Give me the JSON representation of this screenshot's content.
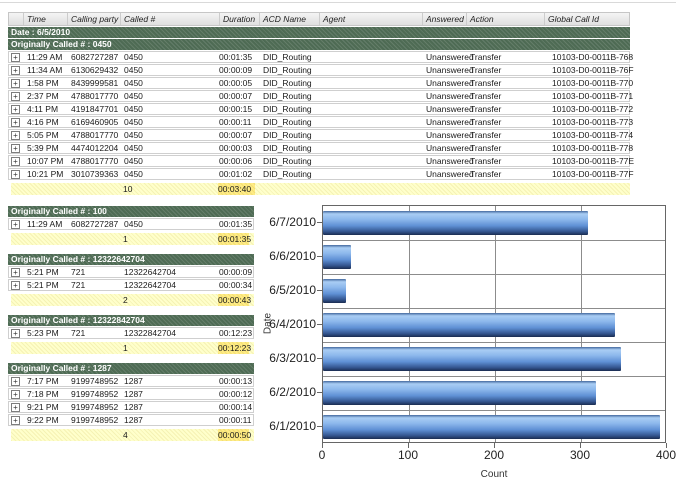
{
  "icons": {
    "expand": "+"
  },
  "colors": {
    "group_header_green": "#4e6b54",
    "summary_yellow": "#ffffcb",
    "summary_duration_yellow": "#ffec85",
    "bar_blue": "#5e8fd4"
  },
  "table": {
    "columns": [
      "",
      "Time",
      "Calling party #",
      "Called #",
      "Duration",
      "ACD Name",
      "Agent",
      "Answered",
      "Action",
      "Global Call Id"
    ],
    "date_group_label": "Date : 6/5/2010",
    "main_group": {
      "label": "Originally Called # : 0450",
      "rows": [
        {
          "time": "11:29 AM",
          "calling_party": "6082727287",
          "called": "0450",
          "duration": "00:01:35",
          "acd_name": "DID_Routing",
          "agent": "",
          "answered": "Unanswered",
          "action": "Transfer",
          "global_call_id": "10103-D0-0011B-768"
        },
        {
          "time": "11:34 AM",
          "calling_party": "6130629432",
          "called": "0450",
          "duration": "00:00:09",
          "acd_name": "DID_Routing",
          "agent": "",
          "answered": "Unanswered",
          "action": "Transfer",
          "global_call_id": "10103-D0-0011B-76F"
        },
        {
          "time": "1:58 PM",
          "calling_party": "8439999581",
          "called": "0450",
          "duration": "00:00:05",
          "acd_name": "DID_Routing",
          "agent": "",
          "answered": "Unanswered",
          "action": "Transfer",
          "global_call_id": "10103-D0-0011B-770"
        },
        {
          "time": "2:37 PM",
          "calling_party": "4788017770",
          "called": "0450",
          "duration": "00:00:07",
          "acd_name": "DID_Routing",
          "agent": "",
          "answered": "Unanswered",
          "action": "Transfer",
          "global_call_id": "10103-D0-0011B-771"
        },
        {
          "time": "4:11 PM",
          "calling_party": "4191847701",
          "called": "0450",
          "duration": "00:00:15",
          "acd_name": "DID_Routing",
          "agent": "",
          "answered": "Unanswered",
          "action": "Transfer",
          "global_call_id": "10103-D0-0011B-772"
        },
        {
          "time": "4:16 PM",
          "calling_party": "6169460905",
          "called": "0450",
          "duration": "00:00:11",
          "acd_name": "DID_Routing",
          "agent": "",
          "answered": "Unanswered",
          "action": "Transfer",
          "global_call_id": "10103-D0-0011B-773"
        },
        {
          "time": "5:05 PM",
          "calling_party": "4788017770",
          "called": "0450",
          "duration": "00:00:07",
          "acd_name": "DID_Routing",
          "agent": "",
          "answered": "Unanswered",
          "action": "Transfer",
          "global_call_id": "10103-D0-0011B-774"
        },
        {
          "time": "5:39 PM",
          "calling_party": "4474012204",
          "called": "0450",
          "duration": "00:00:03",
          "acd_name": "DID_Routing",
          "agent": "",
          "answered": "Unanswered",
          "action": "Transfer",
          "global_call_id": "10103-D0-0011B-778"
        },
        {
          "time": "10:07 PM",
          "calling_party": "4788017770",
          "called": "0450",
          "duration": "00:00:06",
          "acd_name": "DID_Routing",
          "agent": "",
          "answered": "Unanswered",
          "action": "Transfer",
          "global_call_id": "10103-D0-0011B-77E"
        },
        {
          "time": "10:21 PM",
          "calling_party": "3010739363",
          "called": "0450",
          "duration": "00:01:02",
          "acd_name": "DID_Routing",
          "agent": "",
          "answered": "Unanswered",
          "action": "Transfer",
          "global_call_id": "10103-D0-0011B-77F"
        }
      ],
      "summary": {
        "count": "10",
        "total_duration": "00:03:40"
      }
    },
    "sub_groups": [
      {
        "label": "Originally Called # : 100",
        "rows": [
          {
            "time": "11:29 AM",
            "calling_party": "6082727287",
            "called": "0450",
            "duration": "00:01:35"
          }
        ],
        "summary": {
          "count": "1",
          "total_duration": "00:01:35"
        }
      },
      {
        "label": "Originally Called # : 12322642704",
        "rows": [
          {
            "time": "5:21 PM",
            "calling_party": "721",
            "called": "12322642704",
            "duration": "00:00:09"
          },
          {
            "time": "5:21 PM",
            "calling_party": "721",
            "called": "12322642704",
            "duration": "00:00:34"
          }
        ],
        "summary": {
          "count": "2",
          "total_duration": "00:00:43"
        }
      },
      {
        "label": "Originally Called # : 12322842704",
        "rows": [
          {
            "time": "5:23 PM",
            "calling_party": "721",
            "called": "12322842704",
            "duration": "00:12:23"
          }
        ],
        "summary": {
          "count": "1",
          "total_duration": "00:12:23"
        }
      },
      {
        "label": "Originally Called # : 1287",
        "rows": [
          {
            "time": "7:17 PM",
            "calling_party": "9199748952",
            "called": "1287",
            "duration": "00:00:13"
          },
          {
            "time": "7:18 PM",
            "calling_party": "9199748952",
            "called": "1287",
            "duration": "00:00:12"
          },
          {
            "time": "9:21 PM",
            "calling_party": "9199748952",
            "called": "1287",
            "duration": "00:00:14"
          },
          {
            "time": "9:22 PM",
            "calling_party": "9199748952",
            "called": "1287",
            "duration": "00:00:11"
          }
        ],
        "summary": {
          "count": "4",
          "total_duration": "00:00:50"
        }
      }
    ]
  },
  "chart_data": {
    "type": "bar",
    "orientation": "horizontal",
    "title": "",
    "categories": [
      "6/7/2010",
      "6/6/2010",
      "6/5/2010",
      "6/4/2010",
      "6/3/2010",
      "6/2/2010",
      "6/1/2010"
    ],
    "values": [
      308,
      32,
      27,
      340,
      347,
      318,
      392
    ],
    "xlabel": "Count",
    "ylabel": "Date",
    "xlim": [
      0,
      400
    ],
    "xticks": [
      0,
      100,
      200,
      300,
      400
    ],
    "grid": true,
    "legend": "none"
  }
}
